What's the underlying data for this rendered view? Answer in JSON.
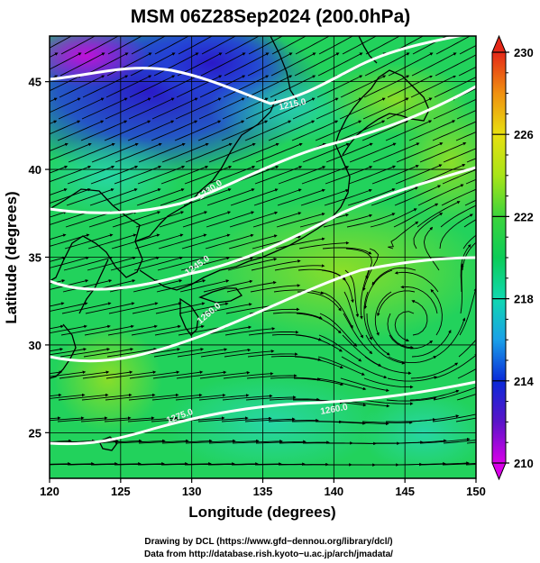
{
  "title": "MSM 06Z28Sep2024 (200.0hPa)",
  "map": {
    "xlabel": "Longitude (degrees)",
    "ylabel": "Latitude  (degrees)",
    "xlim": [
      120,
      150
    ],
    "ylim": [
      22.4,
      47.6
    ],
    "xticks": [
      "120",
      "125",
      "130",
      "135",
      "140",
      "145",
      "150"
    ],
    "yticks": [
      "25",
      "30",
      "35",
      "40",
      "45"
    ],
    "grid": true,
    "field": "temperature (K)",
    "vectors": "wind streamlines"
  },
  "colorbar": {
    "min": 210,
    "max": 230,
    "labels": [
      "210",
      "214",
      "218",
      "222",
      "226",
      "230"
    ],
    "extend": "both",
    "colors": [
      "#d800e8",
      "#5a14c8",
      "#0a2ad8",
      "#1aa0e8",
      "#10d8b0",
      "#0ccc58",
      "#3cd43c",
      "#a8e418",
      "#e8e010",
      "#f09010",
      "#e42818"
    ]
  },
  "contour_labels": [
    "1215.0",
    "1230.0",
    "1245.0",
    "1260.0",
    "1275.0",
    "1260.0"
  ],
  "credits": {
    "line1": "Drawing by DCL (https://www.gfd−dennou.org/library/dcl/)",
    "line2": "Data from http://database.rish.kyoto−u.ac.jp/arch/jmadata/"
  }
}
